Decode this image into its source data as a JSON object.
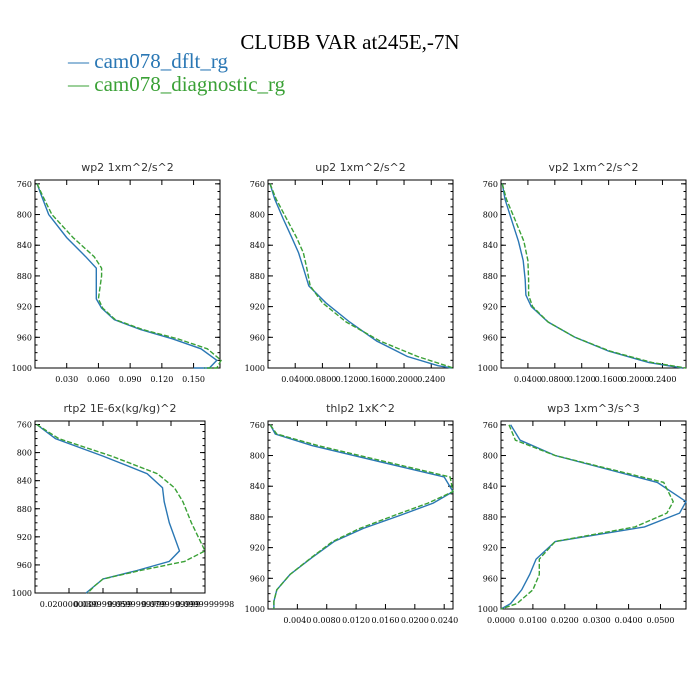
{
  "title": "CLUBB VAR at245E,-7N",
  "legend": [
    {
      "label": "— cam078_dflt_rg",
      "color": "#2a77b4"
    },
    {
      "label": "— cam078_diagnostic_rg",
      "color": "#3aa136"
    }
  ],
  "chart_data": [
    {
      "type": "line",
      "title": "wp2   1xm^2/s^2",
      "xlim": [
        0.0,
        0.175
      ],
      "ylim": [
        1000,
        755
      ],
      "xticks": [
        0.03,
        0.06,
        0.09,
        0.12,
        0.15
      ],
      "xtick_labels": [
        "0.030",
        "0.060",
        "0.090",
        "0.120",
        "0.150"
      ],
      "yticks": [
        760,
        800,
        840,
        880,
        920,
        960,
        1000
      ],
      "series": [
        {
          "name": "cam078_dflt_rg",
          "color": "#2a77b4",
          "x": [
            0.002,
            0.006,
            0.013,
            0.03,
            0.048,
            0.058,
            0.058,
            0.058,
            0.063,
            0.075,
            0.1,
            0.13,
            0.157,
            0.172,
            0.165,
            0.15
          ],
          "y": [
            760,
            775,
            800,
            830,
            855,
            870,
            880,
            910,
            922,
            937,
            950,
            962,
            975,
            990,
            1000,
            1000
          ]
        },
        {
          "name": "cam078_diagnostic_rg",
          "color": "#3aa136",
          "x": [
            0.002,
            0.007,
            0.016,
            0.036,
            0.056,
            0.063,
            0.063,
            0.06,
            0.064,
            0.076,
            0.102,
            0.135,
            0.163,
            0.176,
            0.172,
            0.16
          ],
          "y": [
            760,
            775,
            800,
            830,
            855,
            870,
            880,
            910,
            922,
            937,
            950,
            962,
            975,
            990,
            1000,
            1000
          ]
        }
      ]
    },
    {
      "type": "line",
      "title": "up2   1xm^2/s^2",
      "xlim": [
        0.0,
        0.272
      ],
      "ylim": [
        1000,
        755
      ],
      "xticks": [
        0.04,
        0.08,
        0.12,
        0.16,
        0.2,
        0.24
      ],
      "xtick_labels": [
        "0.0400",
        "0.0800",
        "0.1200",
        "0.1600",
        "0.2000",
        "0.2400"
      ],
      "yticks": [
        760,
        800,
        840,
        880,
        920,
        960,
        1000
      ],
      "series": [
        {
          "name": "cam078_dflt_rg",
          "color": "#2a77b4",
          "x": [
            0.003,
            0.01,
            0.022,
            0.035,
            0.045,
            0.052,
            0.06,
            0.085,
            0.12,
            0.16,
            0.205,
            0.25,
            0.27
          ],
          "y": [
            760,
            780,
            805,
            830,
            850,
            870,
            893,
            915,
            940,
            965,
            985,
            997,
            1000
          ]
        },
        {
          "name": "cam078_diagnostic_rg",
          "color": "#3aa136",
          "x": [
            0.003,
            0.012,
            0.027,
            0.042,
            0.052,
            0.057,
            0.062,
            0.08,
            0.115,
            0.165,
            0.22,
            0.262,
            0.272
          ],
          "y": [
            760,
            780,
            805,
            830,
            850,
            870,
            893,
            915,
            940,
            965,
            985,
            997,
            1000
          ]
        }
      ]
    },
    {
      "type": "line",
      "title": "vp2   1xm^2/s^2",
      "xlim": [
        0.0,
        0.275
      ],
      "ylim": [
        1000,
        755
      ],
      "xticks": [
        0.04,
        0.08,
        0.12,
        0.16,
        0.2,
        0.24
      ],
      "xtick_labels": [
        "0.0400",
        "0.0800",
        "0.1200",
        "0.1600",
        "0.2000",
        "0.2400"
      ],
      "yticks": [
        760,
        800,
        840,
        880,
        920,
        960,
        1000
      ],
      "series": [
        {
          "name": "cam078_dflt_rg",
          "color": "#2a77b4",
          "x": [
            0.002,
            0.006,
            0.015,
            0.026,
            0.033,
            0.036,
            0.037,
            0.045,
            0.07,
            0.11,
            0.16,
            0.22,
            0.27
          ],
          "y": [
            760,
            780,
            805,
            835,
            860,
            885,
            905,
            920,
            940,
            960,
            978,
            993,
            1000
          ]
        },
        {
          "name": "cam078_diagnostic_rg",
          "color": "#3aa136",
          "x": [
            0.002,
            0.008,
            0.02,
            0.034,
            0.04,
            0.041,
            0.041,
            0.047,
            0.07,
            0.11,
            0.162,
            0.225,
            0.275
          ],
          "y": [
            760,
            780,
            805,
            835,
            860,
            885,
            905,
            920,
            940,
            960,
            978,
            993,
            1000
          ]
        }
      ]
    },
    {
      "type": "line",
      "title": "rtp2   1E-6x(kg/kg)^2",
      "xlim": [
        0.0,
        0.1
      ],
      "ylim": [
        1000,
        755
      ],
      "xticks": [
        0.02,
        0.04,
        0.06,
        0.08,
        0.1
      ],
      "xtick_labels": [
        "0.0200000000",
        "0.0399999999",
        "0.0599999999",
        "0.0799999999",
        "0.0999999998"
      ],
      "yticks": [
        760,
        800,
        840,
        880,
        920,
        960,
        1000
      ],
      "series": [
        {
          "name": "cam078_dflt_rg",
          "color": "#2a77b4",
          "x": [
            0.001,
            0.012,
            0.04,
            0.066,
            0.075,
            0.076,
            0.079,
            0.085,
            0.079,
            0.06,
            0.04,
            0.035,
            0.03
          ],
          "y": [
            760,
            780,
            805,
            830,
            850,
            870,
            900,
            940,
            955,
            968,
            980,
            990,
            1000
          ]
        },
        {
          "name": "cam078_diagnostic_rg",
          "color": "#3aa136",
          "x": [
            0.001,
            0.014,
            0.045,
            0.072,
            0.082,
            0.087,
            0.092,
            0.1,
            0.088,
            0.062,
            0.04,
            0.035,
            0.031
          ],
          "y": [
            760,
            780,
            805,
            830,
            850,
            870,
            900,
            940,
            955,
            968,
            980,
            990,
            1000
          ]
        }
      ]
    },
    {
      "type": "line",
      "title": "thlp2   1xK^2",
      "xlim": [
        0.0,
        0.0252
      ],
      "ylim": [
        1000,
        755
      ],
      "xticks": [
        0.004,
        0.008,
        0.012,
        0.016,
        0.02,
        0.024
      ],
      "xtick_labels": [
        "0.0040",
        "0.0080",
        "0.0120",
        "0.0160",
        "0.0200",
        "0.0240"
      ],
      "yticks": [
        760,
        800,
        840,
        880,
        920,
        960,
        1000
      ],
      "series": [
        {
          "name": "cam078_dflt_rg",
          "color": "#2a77b4",
          "x": [
            0.0003,
            0.001,
            0.006,
            0.024,
            0.0252,
            0.0225,
            0.018,
            0.013,
            0.009,
            0.006,
            0.003,
            0.0012,
            0.0008,
            0.0008
          ],
          "y": [
            760,
            772,
            787,
            828,
            847,
            862,
            878,
            895,
            912,
            933,
            955,
            975,
            990,
            1000
          ]
        },
        {
          "name": "cam078_diagnostic_rg",
          "color": "#3aa136",
          "x": [
            0.0003,
            0.0012,
            0.0068,
            0.0248,
            0.0252,
            0.0218,
            0.0172,
            0.0125,
            0.0088,
            0.0059,
            0.003,
            0.0012,
            0.0008,
            0.0008
          ],
          "y": [
            760,
            772,
            787,
            828,
            847,
            862,
            878,
            895,
            912,
            933,
            955,
            975,
            990,
            1000
          ]
        }
      ]
    },
    {
      "type": "line",
      "title": "wp3   1xm^3/s^3",
      "xlim": [
        0.0,
        0.058
      ],
      "ylim": [
        1000,
        755
      ],
      "xticks": [
        0.0,
        0.01,
        0.02,
        0.03,
        0.04,
        0.05
      ],
      "xtick_labels": [
        "0.0000",
        "0.0100",
        "0.0200",
        "0.0300",
        "0.0400",
        "0.0500"
      ],
      "yticks": [
        760,
        800,
        840,
        880,
        920,
        960,
        1000
      ],
      "series": [
        {
          "name": "cam078_dflt_rg",
          "color": "#2a77b4",
          "x": [
            0.003,
            0.006,
            0.017,
            0.049,
            0.058,
            0.056,
            0.045,
            0.017,
            0.011,
            0.009,
            0.0065,
            0.003,
            0.0
          ],
          "y": [
            760,
            780,
            800,
            835,
            860,
            875,
            893,
            912,
            935,
            955,
            975,
            993,
            1000
          ]
        },
        {
          "name": "cam078_diagnostic_rg",
          "color": "#3aa136",
          "x": [
            0.0025,
            0.0045,
            0.017,
            0.051,
            0.054,
            0.052,
            0.042,
            0.017,
            0.012,
            0.012,
            0.01,
            0.005,
            0.0
          ],
          "y": [
            760,
            780,
            800,
            835,
            860,
            875,
            893,
            912,
            935,
            955,
            975,
            993,
            1000
          ]
        }
      ]
    }
  ]
}
